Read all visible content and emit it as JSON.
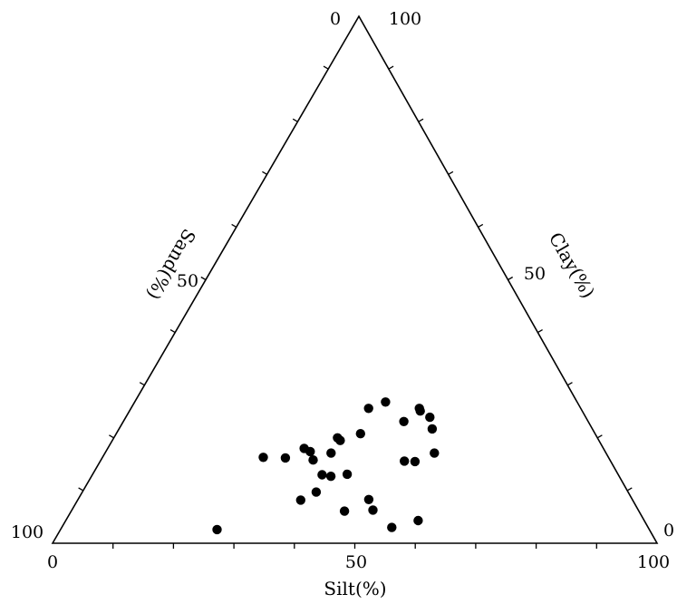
{
  "chart_data": {
    "type": "scatter",
    "subtype": "ternary",
    "title": "",
    "axes": {
      "silt": {
        "label": "Silt(%)",
        "ticks": [
          "0",
          "50",
          "100"
        ],
        "range": [
          0,
          100
        ]
      },
      "sand": {
        "label": "Sand(%)",
        "ticks": [
          "100",
          "50",
          "0"
        ],
        "range": [
          0,
          100
        ]
      },
      "clay": {
        "label": "Clay(%)",
        "ticks": [
          "0",
          "50",
          "100"
        ],
        "range": [
          0,
          100
        ]
      }
    },
    "grid": false,
    "marker_color": "#000000",
    "series": [
      {
        "points": [
          {
            "silt": 36.9,
            "sand": 54.9,
            "clay": 8.2
          },
          {
            "silt": 48.1,
            "sand": 43.6,
            "clay": 8.3
          },
          {
            "silt": 25.9,
            "sand": 71.5,
            "clay": 2.6
          },
          {
            "silt": 45.2,
            "sand": 48.7,
            "clay": 6.1
          },
          {
            "silt": 54.6,
            "sand": 42.4,
            "clay": 3.0
          },
          {
            "silt": 58.3,
            "sand": 37.4,
            "clay": 4.3
          },
          {
            "silt": 49.8,
            "sand": 43.9,
            "clay": 6.3
          },
          {
            "silt": 38.7,
            "sand": 51.6,
            "clay": 9.7
          },
          {
            "silt": 38.0,
            "sand": 49.0,
            "clay": 13.0
          },
          {
            "silt": 42.1,
            "sand": 44.8,
            "clay": 13.1
          },
          {
            "silt": 39.6,
            "sand": 47.7,
            "clay": 12.7
          },
          {
            "silt": 35.1,
            "sand": 49.1,
            "clay": 15.8
          },
          {
            "silt": 37.4,
            "sand": 45.5,
            "clay": 17.1
          },
          {
            "silt": 30.3,
            "sand": 53.5,
            "clay": 16.2
          },
          {
            "silt": 33.8,
            "sand": 48.8,
            "clay": 17.4
          },
          {
            "silt": 26.6,
            "sand": 57.1,
            "clay": 16.3
          },
          {
            "silt": 32.5,
            "sand": 49.5,
            "clay": 18.0
          },
          {
            "silt": 37.7,
            "sand": 42.8,
            "clay": 19.5
          },
          {
            "silt": 37.0,
            "sand": 43.0,
            "clay": 20.0
          },
          {
            "silt": 40.4,
            "sand": 38.8,
            "clay": 20.8
          },
          {
            "silt": 50.3,
            "sand": 25.8,
            "clay": 23.9
          },
          {
            "silt": 41.5,
            "sand": 31.7,
            "clay": 26.8
          },
          {
            "silt": 39.3,
            "sand": 35.1,
            "clay": 25.6
          },
          {
            "silt": 46.4,
            "sand": 30.5,
            "clay": 23.1
          },
          {
            "silt": 52.1,
            "sand": 32.4,
            "clay": 15.5
          },
          {
            "silt": 50.3,
            "sand": 34.1,
            "clay": 15.6
          },
          {
            "silt": 54.5,
            "sand": 28.4,
            "clay": 17.1
          },
          {
            "silt": 51.8,
            "sand": 26.5,
            "clay": 21.7
          },
          {
            "silt": 48.1,
            "sand": 26.8,
            "clay": 25.1
          },
          {
            "silt": 47.7,
            "sand": 26.7,
            "clay": 25.6
          }
        ]
      }
    ]
  }
}
